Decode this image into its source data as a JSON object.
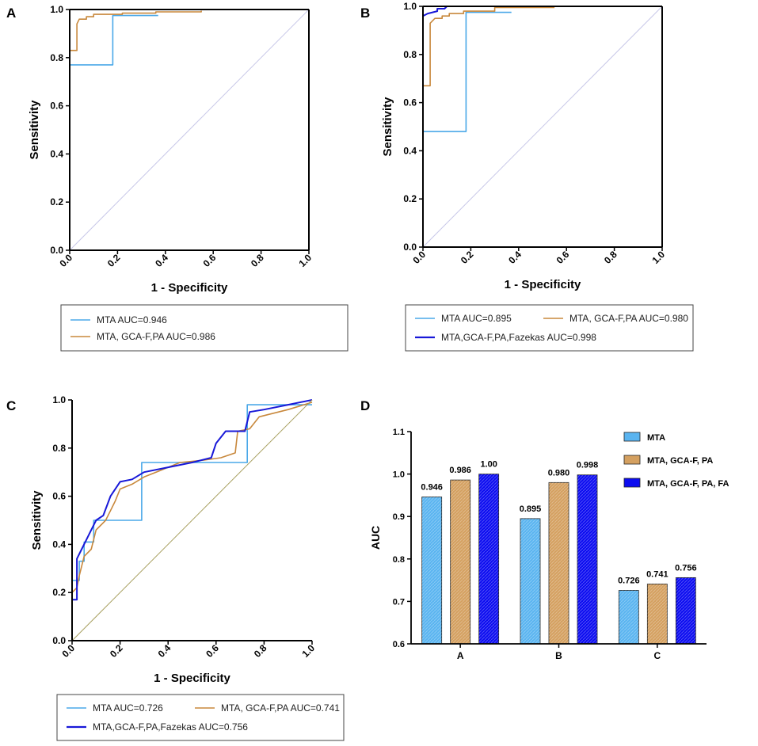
{
  "chart_data": [
    {
      "panel": "A",
      "type": "line",
      "xlabel": "1 - Specificity",
      "ylabel": "Sensitivity",
      "xlim": [
        0,
        1
      ],
      "ylim": [
        0,
        1
      ],
      "xticks": [
        "0.0",
        "0.2",
        "0.4",
        "0.6",
        "0.8",
        "1.0"
      ],
      "yticks": [
        "0.0",
        "0.2",
        "0.4",
        "0.6",
        "0.8",
        "1.0"
      ],
      "legend": [
        "MTA AUC=0.946",
        "MTA, GCA-F,PA AUC=0.986"
      ],
      "series": [
        {
          "name": "MTA AUC=0.946",
          "color": "#4aa8e8",
          "points": [
            [
              0,
              0.18
            ],
            [
              0,
              0.25
            ],
            [
              0,
              0.77
            ],
            [
              0.18,
              0.77
            ],
            [
              0.18,
              0.975
            ],
            [
              0.37,
              0.975
            ]
          ]
        },
        {
          "name": "MTA, GCA-F,PA AUC=0.986",
          "color": "#c8883c",
          "points": [
            [
              0,
              0
            ],
            [
              0,
              0.83
            ],
            [
              0.03,
              0.83
            ],
            [
              0.03,
              0.94
            ],
            [
              0.04,
              0.96
            ],
            [
              0.07,
              0.96
            ],
            [
              0.07,
              0.97
            ],
            [
              0.1,
              0.97
            ],
            [
              0.1,
              0.98
            ],
            [
              0.22,
              0.98
            ],
            [
              0.22,
              0.985
            ],
            [
              0.36,
              0.985
            ],
            [
              0.36,
              0.99
            ],
            [
              0.55,
              0.99
            ],
            [
              0.55,
              0.995
            ]
          ]
        },
        {
          "name": "reference",
          "color": "#c8c8e8",
          "points": [
            [
              0,
              0
            ],
            [
              1,
              1
            ]
          ]
        }
      ]
    },
    {
      "panel": "B",
      "type": "line",
      "xlabel": "1 - Specificity",
      "ylabel": "Sensitivity",
      "xlim": [
        0,
        1
      ],
      "ylim": [
        0,
        1
      ],
      "xticks": [
        "0.0",
        "0.2",
        "0.4",
        "0.6",
        "0.8",
        "1.0"
      ],
      "yticks": [
        "0.0",
        "0.2",
        "0.4",
        "0.6",
        "0.8",
        "1.0"
      ],
      "legend": [
        "MTA AUC=0.895",
        "MTA, GCA-F,PA AUC=0.980",
        "MTA,GCA-F,PA,Fazekas AUC=0.998"
      ],
      "series": [
        {
          "name": "MTA AUC=0.895",
          "color": "#4aa8e8",
          "points": [
            [
              0,
              0
            ],
            [
              0,
              0.48
            ],
            [
              0.18,
              0.48
            ],
            [
              0.18,
              0.975
            ],
            [
              0.37,
              0.975
            ]
          ]
        },
        {
          "name": "MTA, GCA-F,PA AUC=0.980",
          "color": "#c8883c",
          "points": [
            [
              0,
              0.07
            ],
            [
              0,
              0.67
            ],
            [
              0.03,
              0.67
            ],
            [
              0.03,
              0.93
            ],
            [
              0.05,
              0.95
            ],
            [
              0.08,
              0.95
            ],
            [
              0.08,
              0.96
            ],
            [
              0.11,
              0.96
            ],
            [
              0.11,
              0.97
            ],
            [
              0.17,
              0.97
            ],
            [
              0.17,
              0.98
            ],
            [
              0.3,
              0.98
            ],
            [
              0.3,
              0.995
            ],
            [
              0.55,
              0.995
            ]
          ]
        },
        {
          "name": "MTA,GCA-F,PA,Fazekas AUC=0.998",
          "color": "#1818d8",
          "points": [
            [
              0,
              0.96
            ],
            [
              0.02,
              0.97
            ],
            [
              0.06,
              0.98
            ],
            [
              0.06,
              0.99
            ],
            [
              0.09,
              0.99
            ],
            [
              0.1,
              1.0
            ],
            [
              0.12,
              1.0
            ]
          ]
        },
        {
          "name": "reference",
          "color": "#c8c8e8",
          "points": [
            [
              0,
              0
            ],
            [
              1,
              1
            ]
          ]
        }
      ]
    },
    {
      "panel": "C",
      "type": "line",
      "xlabel": "1 - Specificity",
      "ylabel": "Sensitivity",
      "xlim": [
        0,
        1
      ],
      "ylim": [
        0,
        1
      ],
      "xticks": [
        "0.0",
        "0.2",
        "0.4",
        "0.6",
        "0.8",
        "1.0"
      ],
      "yticks": [
        "0.0",
        "0.2",
        "0.4",
        "0.6",
        "0.8",
        "1.0"
      ],
      "legend": [
        "MTA AUC=0.726",
        "MTA, GCA-F,PA AUC=0.741",
        "MTA,GCA-F,PA,Fazekas AUC=0.756"
      ],
      "series": [
        {
          "name": "MTA AUC=0.726",
          "color": "#4aa8e8",
          "points": [
            [
              0,
              0.25
            ],
            [
              0.03,
              0.25
            ],
            [
              0.03,
              0.33
            ],
            [
              0.05,
              0.33
            ],
            [
              0.05,
              0.41
            ],
            [
              0.09,
              0.41
            ],
            [
              0.09,
              0.5
            ],
            [
              0.29,
              0.5
            ],
            [
              0.29,
              0.74
            ],
            [
              0.73,
              0.74
            ],
            [
              0.73,
              0.98
            ],
            [
              1,
              0.98
            ]
          ]
        },
        {
          "name": "MTA, GCA-F,PA AUC=0.741",
          "color": "#c8883c",
          "points": [
            [
              0,
              0.2
            ],
            [
              0.02,
              0.22
            ],
            [
              0.03,
              0.27
            ],
            [
              0.05,
              0.35
            ],
            [
              0.08,
              0.38
            ],
            [
              0.1,
              0.46
            ],
            [
              0.14,
              0.5
            ],
            [
              0.16,
              0.54
            ],
            [
              0.18,
              0.58
            ],
            [
              0.2,
              0.63
            ],
            [
              0.25,
              0.65
            ],
            [
              0.3,
              0.68
            ],
            [
              0.35,
              0.7
            ],
            [
              0.45,
              0.74
            ],
            [
              0.55,
              0.75
            ],
            [
              0.62,
              0.76
            ],
            [
              0.68,
              0.78
            ],
            [
              0.69,
              0.87
            ],
            [
              0.74,
              0.88
            ],
            [
              0.78,
              0.93
            ],
            [
              0.9,
              0.96
            ],
            [
              1,
              0.99
            ]
          ]
        },
        {
          "name": "MTA,GCA-F,PA,Fazekas AUC=0.756",
          "color": "#1818d8",
          "points": [
            [
              0,
              0
            ],
            [
              0,
              0.17
            ],
            [
              0.02,
              0.17
            ],
            [
              0.02,
              0.34
            ],
            [
              0.04,
              0.38
            ],
            [
              0.06,
              0.42
            ],
            [
              0.08,
              0.46
            ],
            [
              0.1,
              0.5
            ],
            [
              0.13,
              0.52
            ],
            [
              0.16,
              0.6
            ],
            [
              0.2,
              0.66
            ],
            [
              0.25,
              0.67
            ],
            [
              0.3,
              0.7
            ],
            [
              0.4,
              0.72
            ],
            [
              0.5,
              0.74
            ],
            [
              0.58,
              0.76
            ],
            [
              0.6,
              0.82
            ],
            [
              0.64,
              0.87
            ],
            [
              0.72,
              0.87
            ],
            [
              0.74,
              0.95
            ],
            [
              0.8,
              0.96
            ],
            [
              0.9,
              0.98
            ],
            [
              1,
              1.0
            ]
          ]
        },
        {
          "name": "reference",
          "color": "#a8a060",
          "points": [
            [
              0,
              0
            ],
            [
              1,
              1
            ]
          ]
        }
      ]
    },
    {
      "panel": "D",
      "type": "bar",
      "ylabel": "AUC",
      "categories": [
        "A",
        "B",
        "C"
      ],
      "ylim": [
        0.6,
        1.1
      ],
      "yticks": [
        "0.6",
        "0.7",
        "0.8",
        "0.9",
        "1.0",
        "1.1"
      ],
      "series": [
        {
          "name": "MTA",
          "color": "#5ab4f0",
          "values": [
            0.946,
            0.895,
            0.726
          ],
          "labels": [
            "0.946",
            "0.895",
            "0.726"
          ]
        },
        {
          "name": "MTA, GCA-F, PA",
          "color": "#d4a060",
          "values": [
            0.986,
            0.98,
            0.741
          ],
          "labels": [
            "0.986",
            "0.980",
            "0.741"
          ]
        },
        {
          "name": "MTA, GCA-F, PA, FA",
          "color": "#0c0cf0",
          "values": [
            1.0,
            0.998,
            0.756
          ],
          "labels": [
            "1.00",
            "0.998",
            "0.756"
          ]
        }
      ]
    }
  ]
}
